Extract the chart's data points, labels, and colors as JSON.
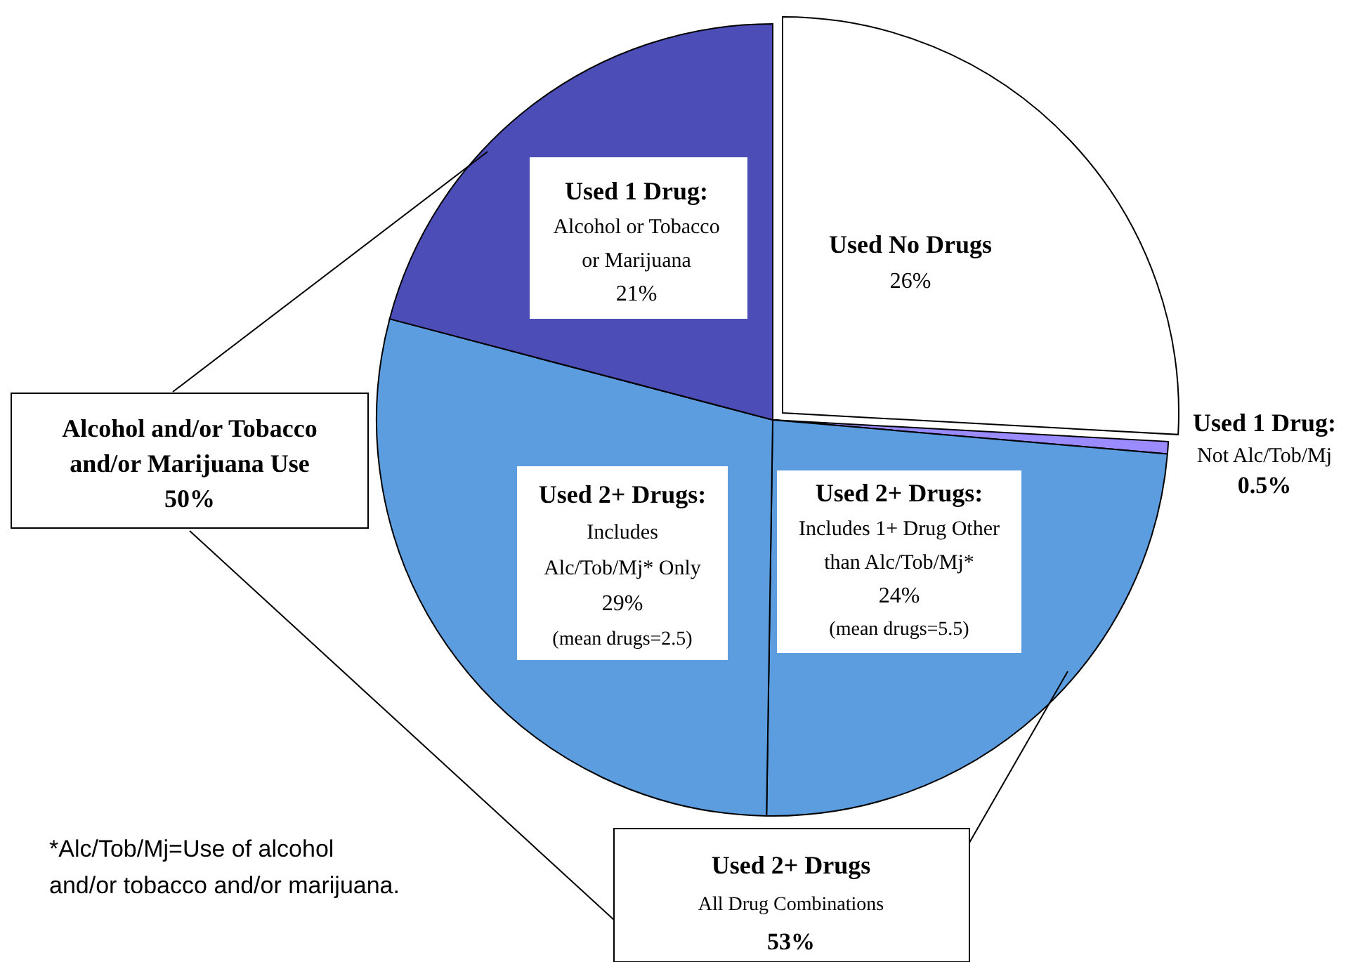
{
  "chart_data": {
    "type": "pie",
    "categories": [
      "Used No Drugs",
      "Used 1 Drug:\nNot Alc/Tob/Mj",
      "Used 2+ Drugs:\nIncludes 1+ Drug Other\nthan Alc/Tob/Mj*",
      "Used 2+ Drugs:\nIncludes\nAlc/Tob/Mj* Only",
      "Used 1 Drug:\nAlcohol  or Tobacco\nor Marijuana"
    ],
    "values": [
      26,
      0.5,
      24,
      29,
      21
    ],
    "colors": [
      "#ffffff",
      "#9a8cff",
      "#5c9ddf",
      "#5c9ddf",
      "#4d4db8"
    ],
    "value_labels": [
      "26%",
      "0.5%",
      "24%\n(mean drugs=5.5)",
      "29%\n(mean drugs=2.5)",
      "21%"
    ],
    "annotations": [
      "Alcohol and/or Tobacco\nand/or Marijuana Use\n50%",
      "Used 2+ Drugs\nAll Drug Combinations\n53%",
      "*Alc/Tob/Mj=Use of alcohol\nand/or tobacco and/or  marijuana."
    ]
  }
}
